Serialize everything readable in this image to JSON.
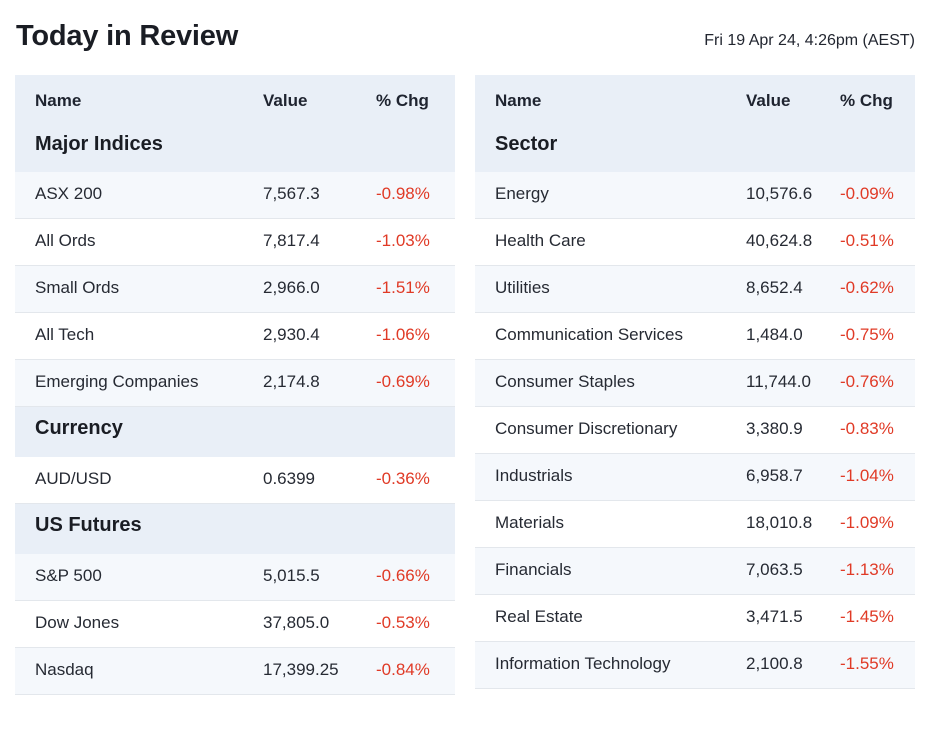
{
  "header": {
    "title": "Today in Review",
    "timestamp": "Fri 19 Apr 24, 4:26pm (AEST)"
  },
  "columns": {
    "name": "Name",
    "value": "Value",
    "chg": "% Chg"
  },
  "colors": {
    "negative": "#e03a26",
    "header_bg": "#e9eff7",
    "alt_row_bg": "#f5f8fc"
  },
  "left": {
    "major_indices": {
      "title": "Major Indices",
      "rows": [
        {
          "name": "ASX 200",
          "value": "7,567.3",
          "chg": "-0.98%"
        },
        {
          "name": "All Ords",
          "value": "7,817.4",
          "chg": "-1.03%"
        },
        {
          "name": "Small Ords",
          "value": "2,966.0",
          "chg": "-1.51%"
        },
        {
          "name": "All Tech",
          "value": "2,930.4",
          "chg": "-1.06%"
        },
        {
          "name": "Emerging Companies",
          "value": "2,174.8",
          "chg": "-0.69%"
        }
      ]
    },
    "currency": {
      "title": "Currency",
      "rows": [
        {
          "name": "AUD/USD",
          "value": "0.6399",
          "chg": "-0.36%"
        }
      ]
    },
    "us_futures": {
      "title": "US Futures",
      "rows": [
        {
          "name": "S&P 500",
          "value": "5,015.5",
          "chg": "-0.66%"
        },
        {
          "name": "Dow Jones",
          "value": "37,805.0",
          "chg": "-0.53%"
        },
        {
          "name": "Nasdaq",
          "value": "17,399.25",
          "chg": "-0.84%"
        }
      ]
    }
  },
  "right": {
    "sector": {
      "title": "Sector",
      "rows": [
        {
          "name": "Energy",
          "value": "10,576.6",
          "chg": "-0.09%"
        },
        {
          "name": "Health Care",
          "value": "40,624.8",
          "chg": "-0.51%"
        },
        {
          "name": "Utilities",
          "value": "8,652.4",
          "chg": "-0.62%"
        },
        {
          "name": "Communication Services",
          "value": "1,484.0",
          "chg": "-0.75%"
        },
        {
          "name": "Consumer Staples",
          "value": "11,744.0",
          "chg": "-0.76%"
        },
        {
          "name": "Consumer Discretionary",
          "value": "3,380.9",
          "chg": "-0.83%"
        },
        {
          "name": "Industrials",
          "value": "6,958.7",
          "chg": "-1.04%"
        },
        {
          "name": "Materials",
          "value": "18,010.8",
          "chg": "-1.09%"
        },
        {
          "name": "Financials",
          "value": "7,063.5",
          "chg": "-1.13%"
        },
        {
          "name": "Real Estate",
          "value": "3,471.5",
          "chg": "-1.45%"
        },
        {
          "name": "Information Technology",
          "value": "2,100.8",
          "chg": "-1.55%"
        }
      ]
    }
  }
}
